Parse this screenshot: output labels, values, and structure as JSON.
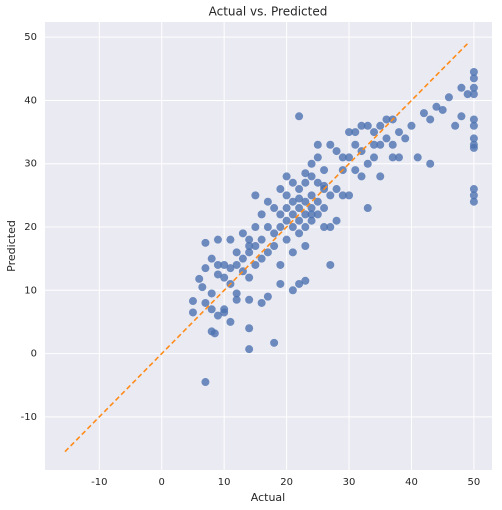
{
  "chart_data": {
    "type": "scatter",
    "title": "Actual vs. Predicted",
    "x_label": "Actual",
    "y_label": "Predicted",
    "xlim": [
      -18.7,
      52.9
    ],
    "ylim": [
      -18.4,
      52.4
    ],
    "xticks": [
      -10,
      0,
      10,
      20,
      30,
      40,
      50
    ],
    "yticks": [
      -10,
      0,
      10,
      20,
      30,
      40,
      50
    ],
    "grid": true,
    "background": "#eaeaf2",
    "reference_line": {
      "x": [
        -15.5,
        49.3
      ],
      "y": [
        -15.5,
        49.3
      ],
      "color": "#ff8c1a"
    },
    "series": [
      {
        "color": "#4c72b0",
        "x": [
          7,
          14,
          18,
          8,
          8.5,
          11,
          14,
          5,
          5,
          7,
          8,
          8,
          9,
          10,
          10,
          12,
          12,
          14,
          16,
          17,
          19,
          21,
          22,
          23,
          6,
          6.5,
          7,
          7,
          8,
          9,
          9,
          9,
          10,
          10,
          11,
          11,
          11,
          12,
          12,
          13,
          13,
          13,
          14,
          14,
          14,
          15,
          15,
          15,
          15,
          16,
          16,
          16,
          17,
          17,
          17,
          18,
          18,
          18,
          19,
          19,
          19,
          19,
          20,
          20,
          20,
          20,
          20,
          21,
          21,
          21,
          21,
          21,
          22,
          22,
          22,
          22,
          22,
          23,
          23,
          23,
          23,
          23,
          24,
          24,
          24,
          24,
          24,
          25,
          25,
          25,
          25,
          26,
          26,
          26,
          26,
          27,
          27,
          27,
          27,
          28,
          28,
          28,
          29,
          29,
          30,
          30,
          30,
          31,
          31,
          32,
          32,
          33,
          33,
          33,
          34,
          34,
          35,
          35,
          35,
          36,
          37,
          37,
          38,
          38,
          39,
          40,
          41,
          42,
          43,
          43,
          44,
          45,
          46,
          47,
          48,
          48,
          49,
          50,
          50,
          50,
          50,
          50,
          50,
          50,
          50,
          50,
          50,
          50,
          50,
          14,
          24,
          22,
          23,
          25,
          26,
          29,
          31,
          32,
          34,
          36,
          37
        ],
        "values": [
          -4.5,
          0.7,
          1.7,
          3.5,
          3.2,
          5,
          4,
          6.5,
          8.3,
          8,
          9.5,
          7,
          6,
          7,
          6.5,
          9.5,
          8.5,
          8.5,
          8,
          9,
          11,
          10,
          11,
          11.5,
          11.8,
          10.5,
          13.5,
          17.5,
          15,
          18,
          14,
          12.5,
          14,
          12,
          13.5,
          11,
          18,
          16,
          14,
          13,
          15,
          19,
          16,
          12,
          18,
          14,
          17,
          20,
          25,
          15,
          18,
          22,
          16,
          20,
          24,
          17,
          19,
          23,
          14,
          20,
          22,
          26,
          18,
          21,
          23,
          25,
          28,
          16,
          20,
          22,
          24,
          27,
          19,
          21,
          23,
          26,
          37.5,
          17,
          20,
          22,
          24,
          27,
          21,
          23,
          25,
          28,
          30,
          22,
          24,
          27,
          31,
          20,
          23,
          26,
          29,
          14,
          20,
          25,
          33,
          21,
          26,
          32,
          25,
          29,
          25,
          31,
          35,
          29,
          33,
          28,
          32,
          23,
          30,
          36,
          31,
          35,
          28,
          33,
          36,
          34,
          33,
          37,
          35,
          31,
          34,
          36,
          31,
          38,
          30,
          37,
          39,
          38.5,
          40.5,
          36,
          42,
          37.5,
          41,
          44.5,
          43.5,
          42,
          41,
          37,
          36,
          34,
          33,
          32.5,
          26,
          25,
          24,
          17,
          22,
          24.5,
          28.5,
          33,
          26.5,
          31,
          35,
          36,
          33,
          37,
          31
        ]
      }
    ]
  }
}
